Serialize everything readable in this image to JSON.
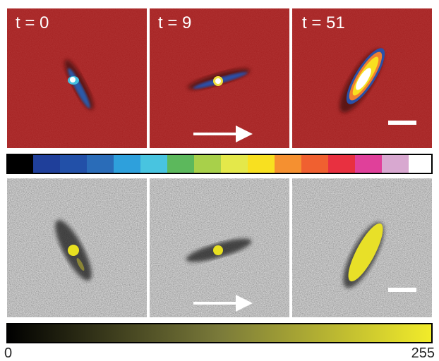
{
  "panels": [
    {
      "label": "t = 0"
    },
    {
      "label": "t = 9"
    },
    {
      "label": "t = 51"
    }
  ],
  "colorbar": {
    "min_label": "0",
    "max_label": "255"
  }
}
